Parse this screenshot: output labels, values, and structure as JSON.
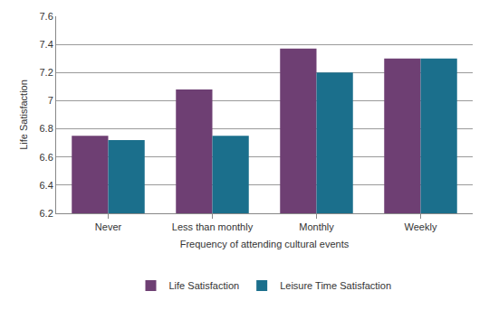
{
  "chart_data": {
    "type": "bar",
    "categories": [
      "Never",
      "Less than monthly",
      "Monthly",
      "Weekly"
    ],
    "series": [
      {
        "name": "Life Satisfaction",
        "color": "#6e3f73",
        "values": [
          6.75,
          7.08,
          7.37,
          7.3
        ]
      },
      {
        "name": "Leisure Time Satisfaction",
        "color": "#1b6f8c",
        "values": [
          6.72,
          6.75,
          7.2,
          7.3
        ]
      }
    ],
    "x_label": "Frequency of attending cultural events",
    "y_label": "Life Satisfaction",
    "ylim": [
      6.2,
      7.6
    ],
    "yticks": [
      6.2,
      6.4,
      6.6,
      6.8,
      7,
      7.2,
      7.4,
      7.6
    ],
    "grid": true,
    "legend": "bottom"
  }
}
